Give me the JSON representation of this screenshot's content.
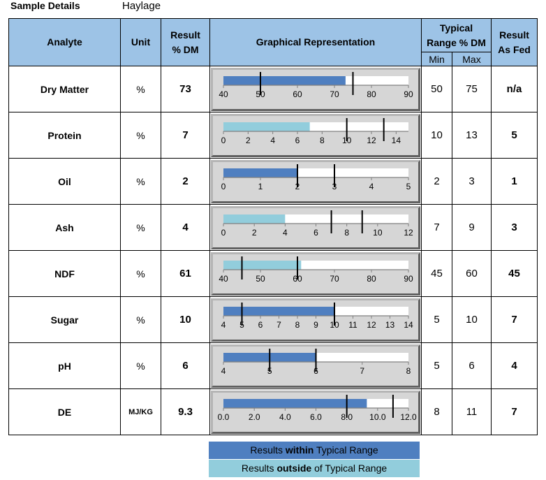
{
  "header": {
    "label": "Sample Details",
    "value": "Haylage"
  },
  "columns": {
    "analyte": "Analyte",
    "unit": "Unit",
    "result_line1": "Result",
    "result_line2": "% DM",
    "graph": "Graphical Representation",
    "range_line1": "Typical",
    "range_line2": "Range % DM",
    "min": "Min",
    "max": "Max",
    "asfed_line1": "Result",
    "asfed_line2": "As Fed"
  },
  "colors": {
    "within": "#4f7fc0",
    "outside": "#92cddc",
    "header_bg": "#9dc3e6"
  },
  "legend": {
    "within_pre": "Results ",
    "within_bold": "within",
    "within_post": " Typical Range",
    "outside_pre": "Results ",
    "outside_bold": "outside",
    "outside_post": " of Typical Range"
  },
  "rows": [
    {
      "analyte": "Dry Matter",
      "unit": "%",
      "result": "73",
      "min": "50",
      "max": "75",
      "asfed": "n/a",
      "value": 73,
      "axis_min": 40,
      "axis_max": 90,
      "ticks": [
        "40",
        "50",
        "60",
        "70",
        "80",
        "90"
      ],
      "status": "within"
    },
    {
      "analyte": "Protein",
      "unit": "%",
      "result": "7",
      "min": "10",
      "max": "13",
      "asfed": "5",
      "value": 7,
      "axis_min": 0,
      "axis_max": 15,
      "ticks": [
        "0",
        "2",
        "4",
        "6",
        "8",
        "10",
        "12",
        "14"
      ],
      "status": "outside"
    },
    {
      "analyte": "Oil",
      "unit": "%",
      "result": "2",
      "min": "2",
      "max": "3",
      "asfed": "1",
      "value": 2,
      "axis_min": 0,
      "axis_max": 5,
      "ticks": [
        "0",
        "1",
        "2",
        "3",
        "4",
        "5"
      ],
      "status": "within"
    },
    {
      "analyte": "Ash",
      "unit": "%",
      "result": "4",
      "min": "7",
      "max": "9",
      "asfed": "3",
      "value": 4,
      "axis_min": 0,
      "axis_max": 12,
      "ticks": [
        "0",
        "2",
        "4",
        "6",
        "8",
        "10",
        "12"
      ],
      "status": "outside"
    },
    {
      "analyte": "NDF",
      "unit": "%",
      "result": "61",
      "min": "45",
      "max": "60",
      "asfed": "45",
      "value": 61,
      "axis_min": 40,
      "axis_max": 90,
      "ticks": [
        "40",
        "50",
        "60",
        "70",
        "80",
        "90"
      ],
      "status": "outside"
    },
    {
      "analyte": "Sugar",
      "unit": "%",
      "result": "10",
      "min": "5",
      "max": "10",
      "asfed": "7",
      "value": 10,
      "axis_min": 4,
      "axis_max": 14,
      "ticks": [
        "4",
        "5",
        "6",
        "7",
        "8",
        "9",
        "10",
        "11",
        "12",
        "13",
        "14"
      ],
      "status": "within"
    },
    {
      "analyte": "pH",
      "unit": "%",
      "result": "6",
      "min": "5",
      "max": "6",
      "asfed": "4",
      "value": 6,
      "axis_min": 4,
      "axis_max": 8,
      "ticks": [
        "4",
        "5",
        "6",
        "7",
        "8"
      ],
      "status": "within"
    },
    {
      "analyte": "DE",
      "unit": "MJ/KG",
      "result": "9.3",
      "min": "8",
      "max": "11",
      "asfed": "7",
      "value": 9.3,
      "axis_min": 0,
      "axis_max": 12,
      "ticks": [
        "0.0",
        "2.0",
        "4.0",
        "6.0",
        "8.0",
        "10.0",
        "12.0"
      ],
      "status": "within"
    }
  ]
}
